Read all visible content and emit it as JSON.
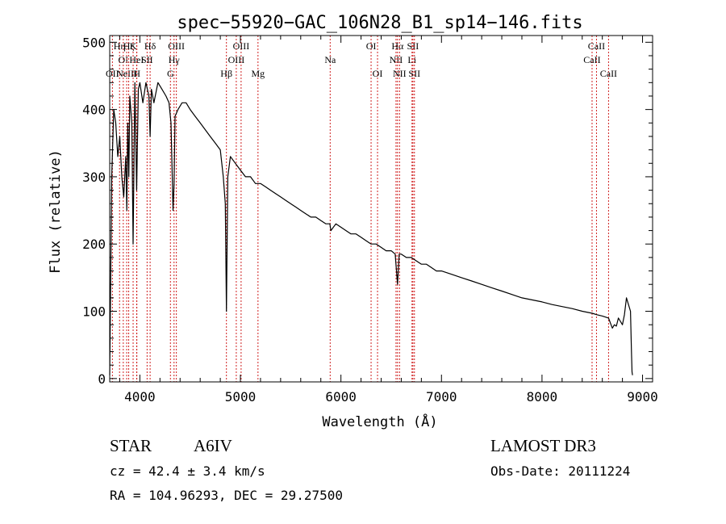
{
  "chart_data": {
    "type": "line",
    "title": "spec−55920−GAC_106N28_B1_sp14−146.fits",
    "xlabel": "Wavelength (Å)",
    "ylabel": "Flux (relative)",
    "xlim": [
      3700,
      9100
    ],
    "ylim": [
      -5,
      510
    ],
    "xticks": [
      4000,
      5000,
      6000,
      7000,
      8000,
      9000
    ],
    "yticks": [
      0,
      100,
      200,
      300,
      400,
      500
    ],
    "grid": false,
    "series": [
      {
        "name": "flux",
        "x": [
          3700,
          3720,
          3740,
          3760,
          3780,
          3800,
          3820,
          3840,
          3860,
          3870,
          3880,
          3890,
          3900,
          3920,
          3933,
          3950,
          3968,
          3985,
          4000,
          4030,
          4060,
          4090,
          4102,
          4115,
          4140,
          4180,
          4220,
          4260,
          4290,
          4310,
          4330,
          4340,
          4350,
          4380,
          4420,
          4460,
          4500,
          4550,
          4600,
          4650,
          4700,
          4750,
          4800,
          4830,
          4850,
          4861,
          4875,
          4900,
          4950,
          5000,
          5050,
          5100,
          5150,
          5200,
          5250,
          5300,
          5350,
          5400,
          5450,
          5500,
          5550,
          5600,
          5650,
          5700,
          5750,
          5800,
          5850,
          5890,
          5900,
          5950,
          6000,
          6050,
          6100,
          6150,
          6200,
          6250,
          6300,
          6350,
          6400,
          6450,
          6500,
          6540,
          6563,
          6580,
          6600,
          6650,
          6700,
          6750,
          6800,
          6850,
          6900,
          6950,
          7000,
          7100,
          7200,
          7300,
          7400,
          7500,
          7600,
          7700,
          7800,
          7900,
          8000,
          8100,
          8200,
          8300,
          8400,
          8500,
          8542,
          8600,
          8662,
          8700,
          8720,
          8740,
          8760,
          8780,
          8800,
          8820,
          8840,
          8860,
          8880,
          8890,
          8895,
          8900
        ],
        "values": [
          5,
          300,
          400,
          380,
          330,
          360,
          300,
          270,
          330,
          250,
          380,
          300,
          420,
          380,
          200,
          440,
          280,
          430,
          440,
          410,
          440,
          420,
          360,
          430,
          410,
          440,
          430,
          420,
          410,
          380,
          250,
          290,
          390,
          400,
          410,
          410,
          400,
          390,
          380,
          370,
          360,
          350,
          340,
          300,
          260,
          100,
          300,
          330,
          320,
          310,
          300,
          300,
          290,
          290,
          285,
          280,
          275,
          270,
          265,
          260,
          255,
          250,
          245,
          240,
          240,
          235,
          230,
          230,
          220,
          230,
          225,
          220,
          215,
          215,
          210,
          205,
          200,
          200,
          195,
          190,
          190,
          185,
          140,
          185,
          185,
          180,
          180,
          175,
          170,
          170,
          165,
          160,
          160,
          155,
          150,
          145,
          140,
          135,
          130,
          125,
          120,
          117,
          114,
          110,
          107,
          104,
          100,
          97,
          95,
          93,
          90,
          75,
          80,
          78,
          90,
          85,
          80,
          95,
          120,
          110,
          100,
          40,
          10,
          5
        ]
      }
    ],
    "line_markers": [
      {
        "x": 3727,
        "label": "OII",
        "row": 2
      },
      {
        "x": 3798,
        "label": "Hη",
        "row": 0
      },
      {
        "x": 3835,
        "label": "OI",
        "row": 1
      },
      {
        "x": 3869,
        "label": "NeIII",
        "row": 2
      },
      {
        "x": 3889,
        "label": "Hζ",
        "row": 0
      },
      {
        "x": 3933,
        "label": "K",
        "row": 0
      },
      {
        "x": 3968,
        "label": "HeI",
        "row": 1
      },
      {
        "x": 3970,
        "label": "H",
        "row": 2
      },
      {
        "x": 4072,
        "label": "SII",
        "row": 1
      },
      {
        "x": 4102,
        "label": "Hδ",
        "row": 0
      },
      {
        "x": 4304,
        "label": "G",
        "row": 2
      },
      {
        "x": 4340,
        "label": "Hγ",
        "row": 1
      },
      {
        "x": 4363,
        "label": "OIII",
        "row": 0
      },
      {
        "x": 4861,
        "label": "Hβ",
        "row": 2
      },
      {
        "x": 4959,
        "label": "OIII",
        "row": 1
      },
      {
        "x": 5007,
        "label": "OIII",
        "row": 0
      },
      {
        "x": 5175,
        "label": "Mg",
        "row": 2
      },
      {
        "x": 5893,
        "label": "Na",
        "row": 1
      },
      {
        "x": 6300,
        "label": "OI",
        "row": 0
      },
      {
        "x": 6364,
        "label": "OI",
        "row": 2
      },
      {
        "x": 6548,
        "label": "NII",
        "row": 1
      },
      {
        "x": 6563,
        "label": "Hα",
        "row": 0
      },
      {
        "x": 6583,
        "label": "NII",
        "row": 2
      },
      {
        "x": 6707,
        "label": "Li",
        "row": 1
      },
      {
        "x": 6716,
        "label": "SII",
        "row": 0
      },
      {
        "x": 6731,
        "label": "SII",
        "row": 2
      },
      {
        "x": 8498,
        "label": "CaII",
        "row": 1
      },
      {
        "x": 8542,
        "label": "CaII",
        "row": 0
      },
      {
        "x": 8662,
        "label": "CaII",
        "row": 2
      }
    ]
  },
  "info": {
    "object_class": "STAR",
    "subclass": "A6IV",
    "survey": "LAMOST DR3",
    "redshift": "cz = 42.4 ± 3.4 km/s",
    "obs_date": "Obs-Date: 20111224",
    "coords": "RA = 104.96293, DEC =  29.27500"
  }
}
